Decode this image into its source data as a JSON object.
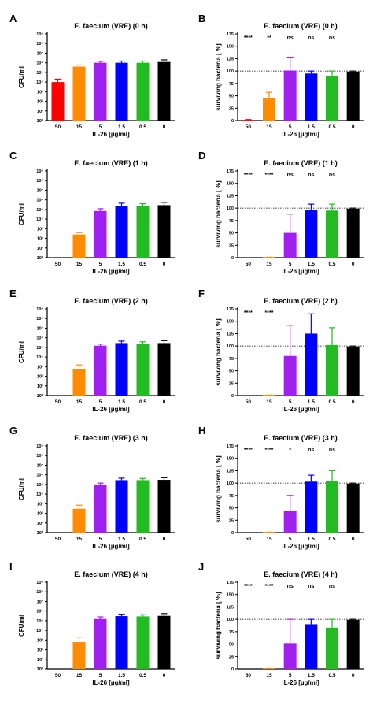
{
  "chart_data": [
    {
      "panel": "A",
      "type": "bar",
      "scale": "log",
      "title": "E. faecium (VRE) (0 h)",
      "xlabel": "IL-26 [µg/ml]",
      "ylabel": "CFU/ml",
      "categories": [
        "50",
        "15",
        "5",
        "1.5",
        "0.5",
        "0"
      ],
      "values": [
        10000,
        400000,
        1000000,
        1000000,
        1000000,
        1200000
      ],
      "errors_upper": [
        20000,
        600000,
        1400000,
        1500000,
        1500000,
        2000000
      ],
      "ylim": [
        1,
        1000000000
      ],
      "yticks": [
        1,
        10,
        100,
        1000,
        10000,
        100000,
        1000000,
        10000000,
        100000000,
        1000000000
      ],
      "ytick_labels": [
        "10⁰",
        "10¹",
        "10²",
        "10³",
        "10⁴",
        "10⁵",
        "10⁶",
        "10⁷",
        "10⁸",
        "10⁹"
      ],
      "colors": [
        "#ff0000",
        "#ff8c00",
        "#a020f0",
        "#0000ff",
        "#22bb22",
        "#000000"
      ]
    },
    {
      "panel": "B",
      "type": "bar",
      "scale": "linear",
      "title": "E. faecium (VRE) (0 h)",
      "xlabel": "IL-26 [µg/ml]",
      "ylabel": "surviving bacteria [ %]",
      "categories": [
        "50",
        "15",
        "5",
        "1.5",
        "0.5",
        "0"
      ],
      "values": [
        1,
        46,
        101,
        95,
        90,
        99
      ],
      "errors_upper": [
        2,
        57,
        128,
        100,
        100,
        100
      ],
      "ylim": [
        0,
        175
      ],
      "yticks": [
        0,
        25,
        50,
        75,
        100,
        125,
        150,
        175
      ],
      "ytick_labels": [
        "0",
        "25",
        "50",
        "75",
        "100",
        "125",
        "150",
        "175"
      ],
      "reference_line": 100,
      "significance": [
        "****",
        "**",
        "ns",
        "ns",
        "ns"
      ],
      "colors": [
        "#ff0000",
        "#ff8c00",
        "#a020f0",
        "#0000ff",
        "#22bb22",
        "#000000"
      ]
    },
    {
      "panel": "C",
      "type": "bar",
      "scale": "log",
      "title": "E. faecium (VRE) (1 h)",
      "xlabel": "IL-26 [µg/ml]",
      "ylabel": "CFU/ml",
      "categories": [
        "50",
        "15",
        "5",
        "1.5",
        "0.5",
        "0"
      ],
      "values": [
        0,
        250,
        70000,
        250000,
        250000,
        280000
      ],
      "errors_upper": [
        0,
        400,
        120000,
        450000,
        400000,
        550000
      ],
      "ylim": [
        1,
        1000000000
      ],
      "yticks": [
        1,
        10,
        100,
        1000,
        10000,
        100000,
        1000000,
        10000000,
        100000000,
        1000000000
      ],
      "ytick_labels": [
        "10⁰",
        "10¹",
        "10²",
        "10³",
        "10⁴",
        "10⁵",
        "10⁶",
        "10⁷",
        "10⁸",
        "10⁹"
      ],
      "colors": [
        "#ff0000",
        "#ff8c00",
        "#a020f0",
        "#0000ff",
        "#22bb22",
        "#000000"
      ]
    },
    {
      "panel": "D",
      "type": "bar",
      "scale": "linear",
      "title": "E. faecium (VRE) (1 h)",
      "xlabel": "IL-26 [µg/ml]",
      "ylabel": "surviving bacteria [ %]",
      "categories": [
        "50",
        "15",
        "5",
        "1.5",
        "0.5",
        "0"
      ],
      "values": [
        0,
        0.5,
        50,
        97,
        95,
        99
      ],
      "errors_upper": [
        0,
        1,
        88,
        108,
        108,
        100
      ],
      "ylim": [
        0,
        175
      ],
      "yticks": [
        0,
        25,
        50,
        75,
        100,
        125,
        150,
        175
      ],
      "ytick_labels": [
        "0",
        "25",
        "50",
        "75",
        "100",
        "125",
        "150",
        "175"
      ],
      "reference_line": 100,
      "significance": [
        "****",
        "****",
        "ns",
        "ns",
        "ns"
      ],
      "colors": [
        "#ff0000",
        "#ff8c00",
        "#a020f0",
        "#0000ff",
        "#22bb22",
        "#000000"
      ]
    },
    {
      "panel": "E",
      "type": "bar",
      "scale": "log",
      "title": "E. faecium (VRE) (2 h)",
      "xlabel": "IL-26 [µg/ml]",
      "ylabel": "CFU/ml",
      "categories": [
        "50",
        "15",
        "5",
        "1.5",
        "0.5",
        "0"
      ],
      "values": [
        0,
        600,
        150000,
        280000,
        250000,
        280000
      ],
      "errors_upper": [
        0,
        1500,
        220000,
        450000,
        380000,
        500000
      ],
      "ylim": [
        1,
        1000000000
      ],
      "yticks": [
        1,
        10,
        100,
        1000,
        10000,
        100000,
        1000000,
        10000000,
        100000000,
        1000000000
      ],
      "ytick_labels": [
        "10⁰",
        "10¹",
        "10²",
        "10³",
        "10⁴",
        "10⁵",
        "10⁶",
        "10⁷",
        "10⁸",
        "10⁹"
      ],
      "colors": [
        "#ff0000",
        "#ff8c00",
        "#a020f0",
        "#0000ff",
        "#22bb22",
        "#000000"
      ]
    },
    {
      "panel": "F",
      "type": "bar",
      "scale": "linear",
      "title": "E. faecium (VRE) (2 h)",
      "xlabel": "IL-26 [µg/ml]",
      "ylabel": "surviving bacteria [ %]",
      "categories": [
        "50",
        "15",
        "5",
        "1.5",
        "0.5",
        "0"
      ],
      "values": [
        0,
        0.5,
        80,
        125,
        102,
        99
      ],
      "errors_upper": [
        0,
        1,
        142,
        165,
        137,
        100
      ],
      "ylim": [
        0,
        175
      ],
      "yticks": [
        0,
        25,
        50,
        75,
        100,
        125,
        150,
        175
      ],
      "ytick_labels": [
        "0",
        "25",
        "50",
        "75",
        "100",
        "125",
        "150",
        "175"
      ],
      "reference_line": 100,
      "significance": [
        "****",
        "****",
        "",
        "",
        ""
      ],
      "colors": [
        "#ff0000",
        "#ff8c00",
        "#a020f0",
        "#0000ff",
        "#22bb22",
        "#000000"
      ]
    },
    {
      "panel": "G",
      "type": "bar",
      "scale": "log",
      "title": "E. faecium (VRE) (3 h)",
      "xlabel": "IL-26 [µg/ml]",
      "ylabel": "CFU/ml",
      "categories": [
        "50",
        "15",
        "5",
        "1.5",
        "0.5",
        "0"
      ],
      "values": [
        0,
        300,
        100000,
        280000,
        280000,
        300000
      ],
      "errors_upper": [
        0,
        700,
        140000,
        450000,
        420000,
        500000
      ],
      "ylim": [
        1,
        1000000000
      ],
      "yticks": [
        1,
        10,
        100,
        1000,
        10000,
        100000,
        1000000,
        10000000,
        100000000,
        1000000000
      ],
      "ytick_labels": [
        "10⁰",
        "10¹",
        "10²",
        "10³",
        "10⁴",
        "10⁵",
        "10⁶",
        "10⁷",
        "10⁸",
        "10⁹"
      ],
      "colors": [
        "#ff0000",
        "#ff8c00",
        "#a020f0",
        "#0000ff",
        "#22bb22",
        "#000000"
      ]
    },
    {
      "panel": "H",
      "type": "bar",
      "scale": "linear",
      "title": "E. faecium (VRE) (3 h)",
      "xlabel": "IL-26 [µg/ml]",
      "ylabel": "surviving bacteria [ %]",
      "categories": [
        "50",
        "15",
        "5",
        "1.5",
        "0.5",
        "0"
      ],
      "values": [
        0,
        0.5,
        43,
        103,
        105,
        99
      ],
      "errors_upper": [
        0,
        1,
        75,
        116,
        125,
        100
      ],
      "ylim": [
        0,
        175
      ],
      "yticks": [
        0,
        25,
        50,
        75,
        100,
        125,
        150,
        175
      ],
      "ytick_labels": [
        "0",
        "25",
        "50",
        "75",
        "100",
        "125",
        "150",
        "175"
      ],
      "reference_line": 100,
      "significance": [
        "****",
        "****",
        "*",
        "ns",
        "ns"
      ],
      "colors": [
        "#ff0000",
        "#ff8c00",
        "#a020f0",
        "#0000ff",
        "#22bb22",
        "#000000"
      ]
    },
    {
      "panel": "I",
      "type": "bar",
      "scale": "log",
      "title": "E. faecium (VRE) (4 h)",
      "xlabel": "IL-26 [µg/ml]",
      "ylabel": "CFU/ml",
      "categories": [
        "50",
        "15",
        "5",
        "1.5",
        "0.5",
        "0"
      ],
      "values": [
        0,
        600,
        150000,
        300000,
        280000,
        320000
      ],
      "errors_upper": [
        0,
        2000,
        250000,
        480000,
        420000,
        550000
      ],
      "ylim": [
        1,
        1000000000
      ],
      "yticks": [
        1,
        10,
        100,
        1000,
        10000,
        100000,
        1000000,
        10000000,
        100000000,
        1000000000
      ],
      "ytick_labels": [
        "10⁰",
        "10¹",
        "10²",
        "10³",
        "10⁴",
        "10⁵",
        "10⁶",
        "10⁷",
        "10⁸",
        "10⁹"
      ],
      "colors": [
        "#ff0000",
        "#ff8c00",
        "#a020f0",
        "#0000ff",
        "#22bb22",
        "#000000"
      ]
    },
    {
      "panel": "J",
      "type": "bar",
      "scale": "linear",
      "title": "E. faecium (VRE) (4 h)",
      "xlabel": "IL-26 [µg/ml]",
      "ylabel": "surviving bacteria [ %]",
      "categories": [
        "50",
        "15",
        "5",
        "1.5",
        "0.5",
        "0"
      ],
      "values": [
        0,
        0.5,
        52,
        90,
        83,
        99
      ],
      "errors_upper": [
        0,
        1,
        100,
        100,
        100,
        100
      ],
      "ylim": [
        0,
        175
      ],
      "yticks": [
        0,
        25,
        50,
        75,
        100,
        125,
        150,
        175
      ],
      "ytick_labels": [
        "0",
        "25",
        "50",
        "75",
        "100",
        "125",
        "150",
        "175"
      ],
      "reference_line": 100,
      "significance": [
        "****",
        "****",
        "ns",
        "ns",
        "ns"
      ],
      "colors": [
        "#ff0000",
        "#ff8c00",
        "#a020f0",
        "#0000ff",
        "#22bb22",
        "#000000"
      ]
    }
  ]
}
